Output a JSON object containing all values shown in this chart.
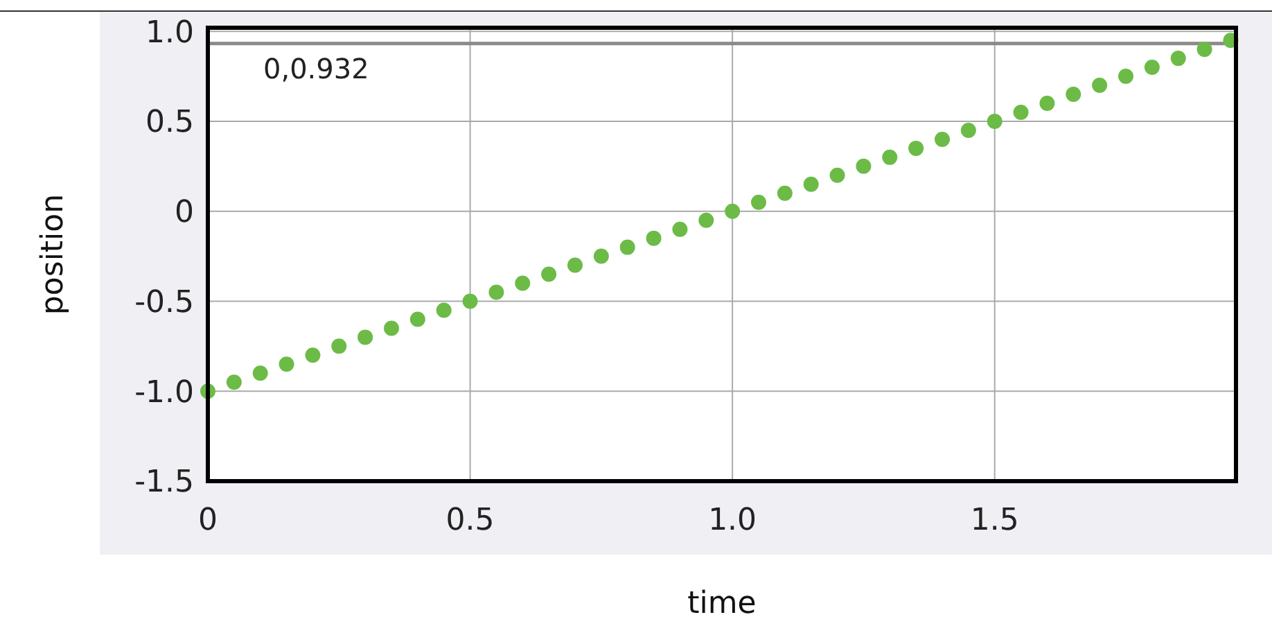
{
  "chart_data": {
    "type": "scatter",
    "xlabel": "time",
    "ylabel": "position",
    "x": [
      0,
      0.05,
      0.1,
      0.15,
      0.2,
      0.25,
      0.3,
      0.35,
      0.4,
      0.45,
      0.5,
      0.55,
      0.6,
      0.65,
      0.7,
      0.75,
      0.8,
      0.85,
      0.9,
      0.95,
      1.0,
      1.05,
      1.1,
      1.15,
      1.2,
      1.25,
      1.3,
      1.35,
      1.4,
      1.45,
      1.5,
      1.55,
      1.6,
      1.65,
      1.7,
      1.75,
      1.8,
      1.85,
      1.9,
      1.95
    ],
    "series": [
      {
        "color": "#6cbb47",
        "values": [
          -1,
          -0.95,
          -0.9,
          -0.85,
          -0.8,
          -0.75,
          -0.7,
          -0.65,
          -0.6,
          -0.55,
          -0.5,
          -0.45,
          -0.4,
          -0.35,
          -0.3,
          -0.25,
          -0.2,
          -0.15,
          -0.1,
          -0.05,
          0,
          0.05,
          0.1,
          0.15,
          0.2,
          0.25,
          0.3,
          0.35,
          0.4,
          0.45,
          0.5,
          0.55,
          0.6,
          0.65,
          0.7,
          0.75,
          0.8,
          0.85,
          0.9,
          0.95
        ]
      }
    ],
    "xlim": [
      0,
      1.96
    ],
    "xticks": [
      0,
      0.5,
      {
        "value": 1,
        "label": "1.0"
      },
      1.5
    ],
    "ylim": [
      -1.5,
      1.02
    ],
    "yticks": [
      -1.5,
      {
        "value": -1,
        "label": "-1.0"
      },
      -0.5,
      0,
      0.5,
      {
        "value": 1,
        "label": "1.0"
      }
    ],
    "ref_lines": [
      {
        "axis": "y",
        "value": 0.932,
        "label": "0,0.932",
        "color": "#8a8a8a"
      }
    ],
    "grid": true,
    "marker": "circle"
  }
}
